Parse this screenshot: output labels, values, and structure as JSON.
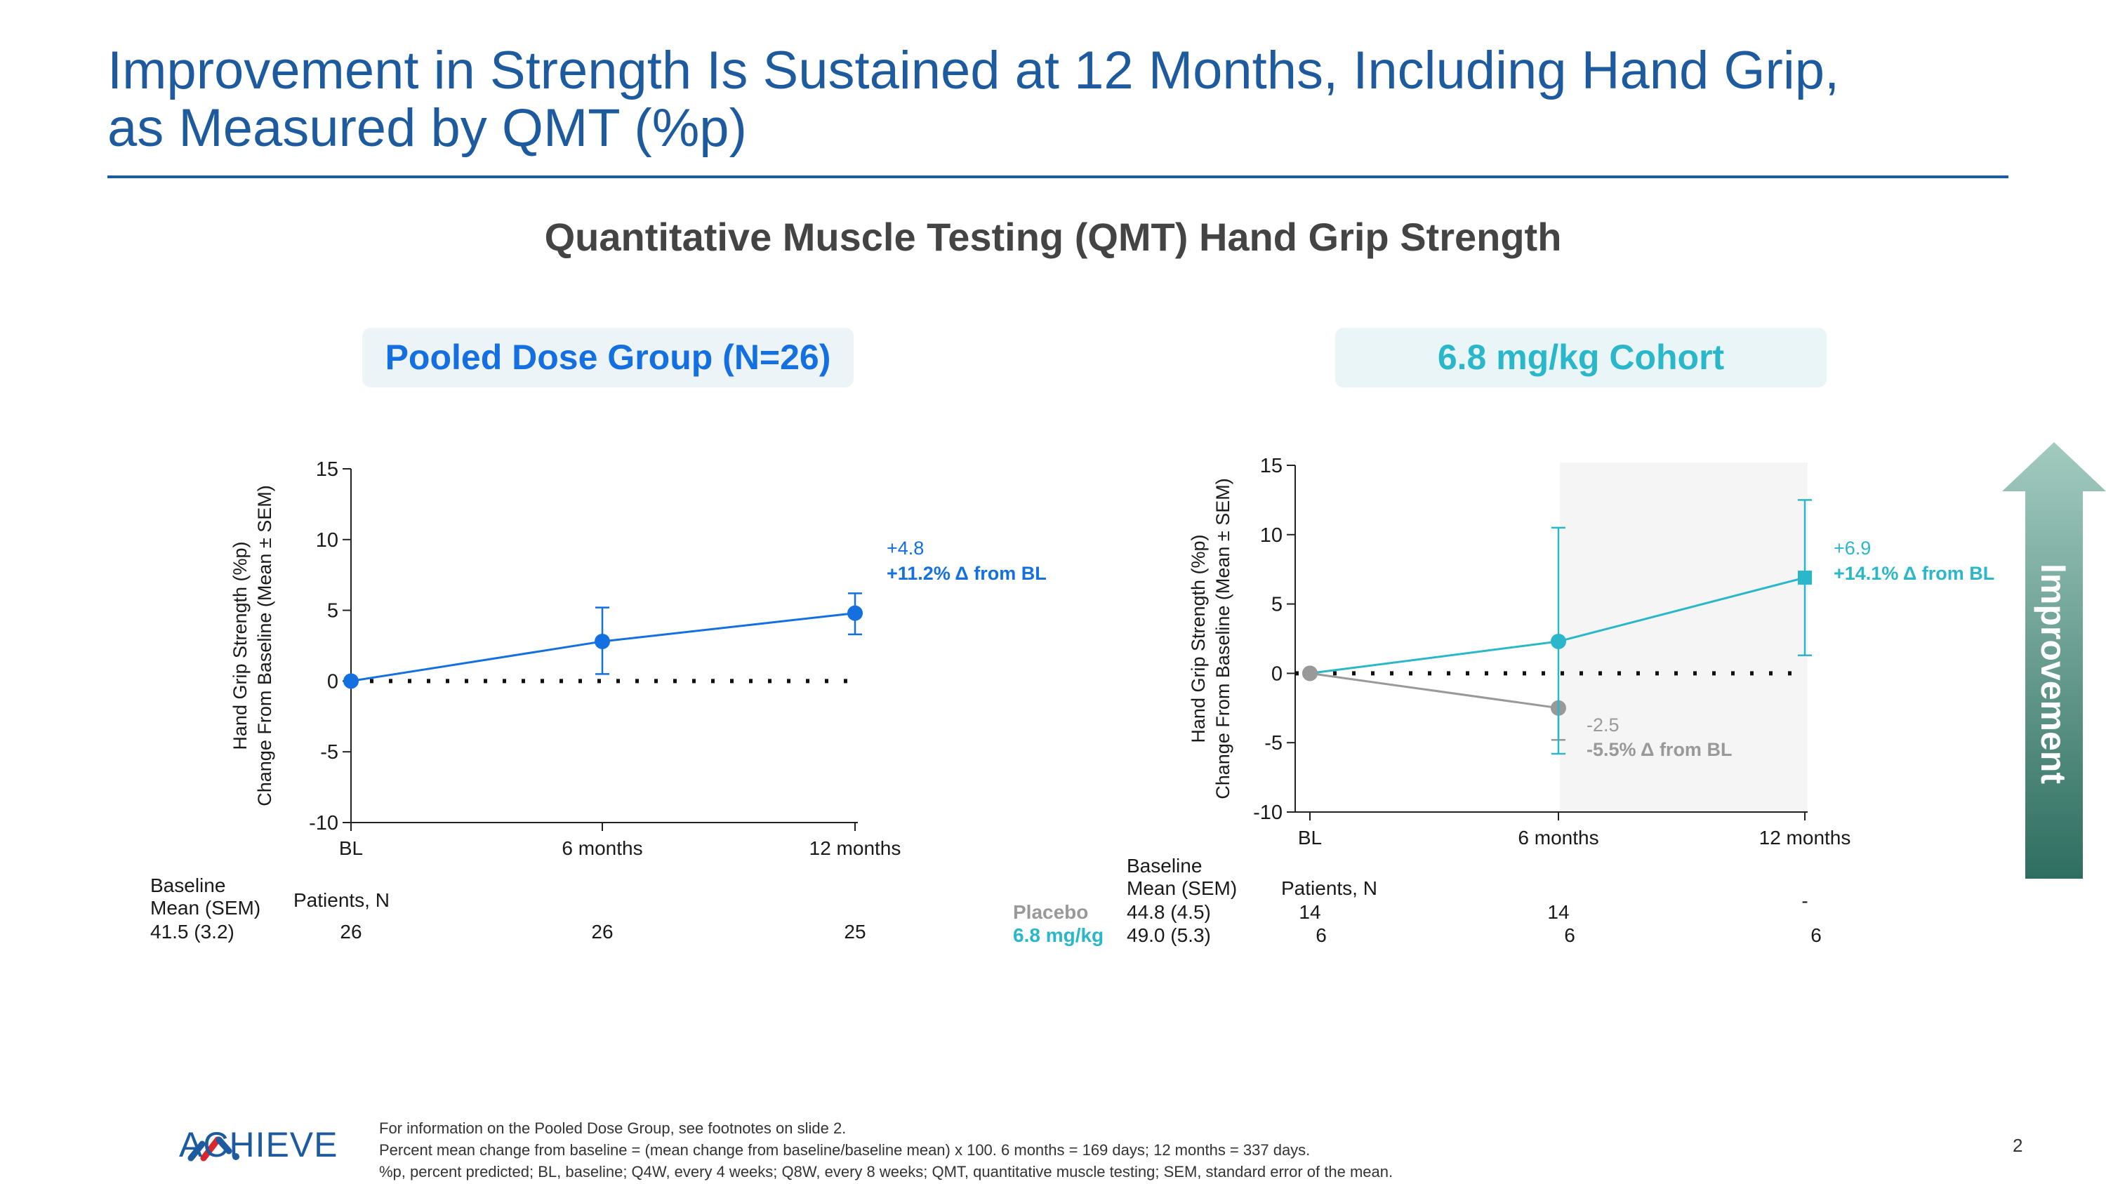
{
  "slide": {
    "title": "Improvement in Strength Is Sustained at 12 Months, Including Hand Grip, as Measured by QMT (%p)",
    "subtitle": "Quantitative Muscle Testing (QMT) Hand Grip Strength",
    "page_number": "2",
    "improvement_label": "Improvement",
    "logo_text": "ACHIEVE",
    "footnotes": [
      "For information on the Pooled Dose Group, see footnotes on slide 2.",
      "Percent mean change from baseline = (mean change from baseline/baseline mean) x 100. 6 months = 169 days; 12 months = 337 days.",
      "%p, percent predicted; BL, baseline; Q4W, every 4 weeks; Q8W, every 8 weeks; QMT, quantitative muscle testing; SEM, standard error of the mean."
    ]
  },
  "chart_data": [
    {
      "type": "line",
      "title": "Pooled Dose Group (N=26)",
      "ylabel": "Hand Grip Strength (%p) Change From Baseline (Mean ± SEM)",
      "ylabel_lines": [
        "Hand Grip Strength (%p)",
        "Change From Baseline (Mean ± SEM)"
      ],
      "categories": [
        "BL",
        "6 months",
        "12 months"
      ],
      "ylim": [
        -10,
        15
      ],
      "yticks": [
        "15",
        "10",
        "5",
        "0",
        "-5",
        "-10"
      ],
      "series": [
        {
          "values": [
            0,
            2.8,
            4.8
          ],
          "error_low": [
            0,
            0.5,
            3.3
          ],
          "error_high": [
            0,
            5.2,
            6.2
          ],
          "color": "#1470e0"
        }
      ],
      "annotations": [
        {
          "line1": "+4.8",
          "line2": "+11.2% Δ from BL",
          "color": "#1470e0"
        }
      ],
      "table": {
        "baseline_header": [
          "Baseline",
          "Mean (SEM)"
        ],
        "patients_header": "Patients, N",
        "rows": [
          {
            "baseline": "41.5 (3.2)",
            "counts": [
              "26",
              "26",
              "25"
            ]
          }
        ]
      }
    },
    {
      "type": "line",
      "title": "6.8 mg/kg Cohort",
      "ylabel": "Hand Grip Strength (%p) Change From Baseline (Mean ± SEM)",
      "ylabel_lines": [
        "Hand Grip Strength (%p)",
        "Change From Baseline (Mean ± SEM)"
      ],
      "categories": [
        "BL",
        "6 months",
        "12 months"
      ],
      "ylim": [
        -10,
        15
      ],
      "yticks": [
        "15",
        "10",
        "5",
        "0",
        "-5",
        "-10"
      ],
      "series": [
        {
          "name": "Placebo",
          "values": [
            0,
            -2.5,
            null
          ],
          "error_low": [
            0,
            -4.8,
            null
          ],
          "error_high": [
            0,
            -2.5,
            null
          ],
          "color": "#999999"
        },
        {
          "name": "6.8 mg/kg",
          "values": [
            0,
            2.3,
            6.9
          ],
          "error_low": [
            0,
            -5.8,
            1.3
          ],
          "error_high": [
            0,
            10.5,
            12.5
          ],
          "color": "#2ab7c9"
        }
      ],
      "annotations": [
        {
          "line1": "+6.9",
          "line2": "+14.1% Δ from BL",
          "color": "#2ab7c9"
        },
        {
          "line1": "-2.5",
          "line2": "-5.5% Δ from BL",
          "color": "#999999"
        }
      ],
      "table": {
        "baseline_header": [
          "Baseline",
          "Mean (SEM)"
        ],
        "patients_header": "Patients, N",
        "rows": [
          {
            "label": "Placebo",
            "baseline": "44.8 (4.5)",
            "counts": [
              "14",
              "14",
              "-"
            ],
            "color": "#999999"
          },
          {
            "label": "6.8 mg/kg",
            "baseline": "49.0 (5.3)",
            "counts": [
              "6",
              "6",
              "6"
            ],
            "color": "#2ab7c9"
          }
        ]
      }
    }
  ]
}
